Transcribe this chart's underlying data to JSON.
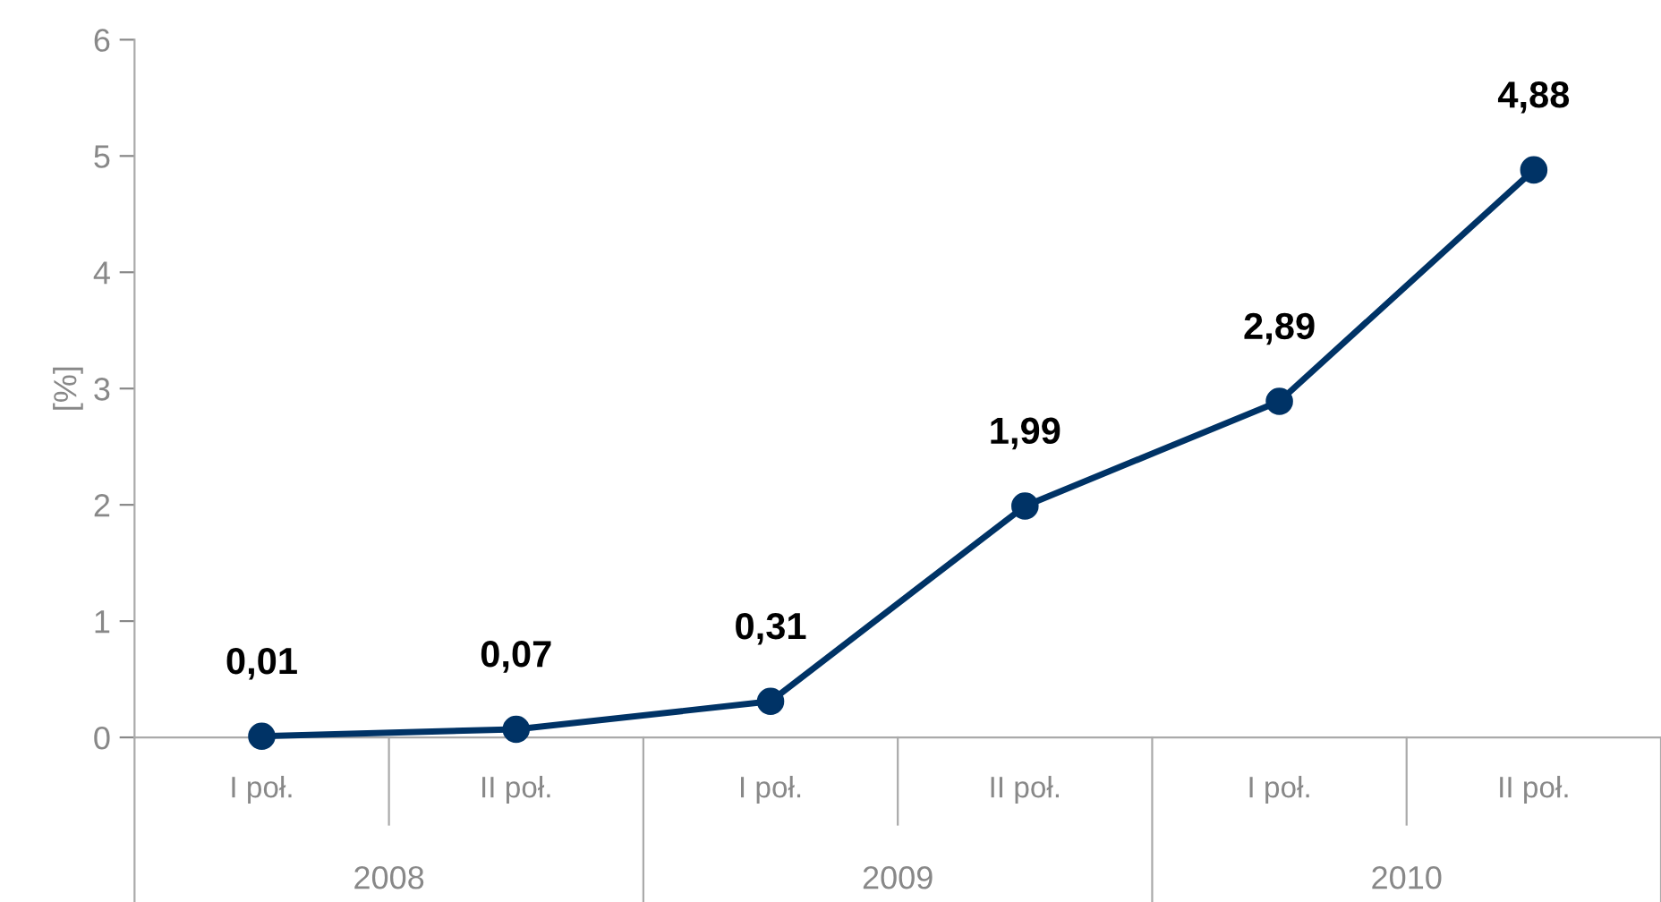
{
  "chart_data": {
    "type": "line",
    "ylabel": "[%]",
    "categories": [
      "I poł.",
      "II poł.",
      "I poł.",
      "II poł.",
      "I poł.",
      "II poł."
    ],
    "series": [
      {
        "color": "#003366",
        "values": [
          0.01,
          0.07,
          0.31,
          1.99,
          2.89,
          4.88
        ],
        "value_labels": [
          "0,01",
          "0,07",
          "0,31",
          "1,99",
          "2,89",
          "4,88"
        ]
      }
    ],
    "annotations": [
      "2008",
      "2009",
      "2010"
    ],
    "ylim": [
      0,
      6
    ],
    "yticks": [
      0,
      1,
      2,
      3,
      4,
      5,
      6
    ],
    "grid": false,
    "marker": "circle",
    "line_style": "solid"
  }
}
